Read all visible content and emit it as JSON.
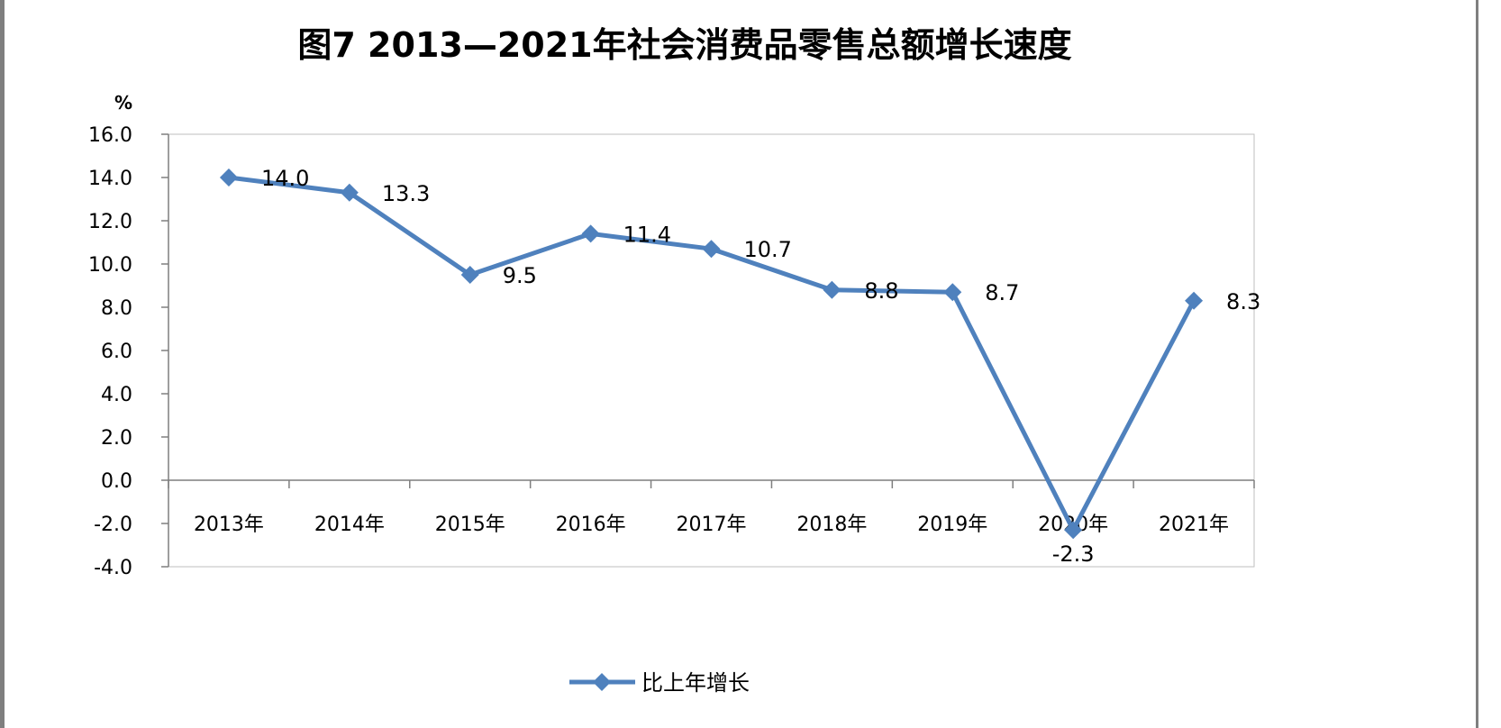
{
  "chart_data": {
    "type": "line",
    "title": "图7  2013—2021年社会消费品零售总额增长速度",
    "ylabel": "%",
    "xlabel": "",
    "categories": [
      "2013年",
      "2014年",
      "2015年",
      "2016年",
      "2017年",
      "2018年",
      "2019年",
      "2020年",
      "2021年"
    ],
    "series": [
      {
        "name": "比上年增长",
        "values": [
          14.0,
          13.3,
          9.5,
          11.4,
          10.7,
          8.8,
          8.7,
          -2.3,
          8.3
        ],
        "color": "#4f81bd"
      }
    ],
    "data_labels": [
      "14.0",
      "13.3",
      "9.5",
      "11.4",
      "10.7",
      "8.8",
      "8.7",
      "-2.3",
      "8.3"
    ],
    "ylim": [
      -4.0,
      16.0
    ],
    "ytick_labels": [
      "16.0",
      "14.0",
      "12.0",
      "10.0",
      "8.0",
      "6.0",
      "4.0",
      "2.0",
      "0.0",
      "-2.0",
      "-4.0"
    ],
    "grid": false,
    "legend_position": "bottom",
    "marker": "diamond"
  }
}
